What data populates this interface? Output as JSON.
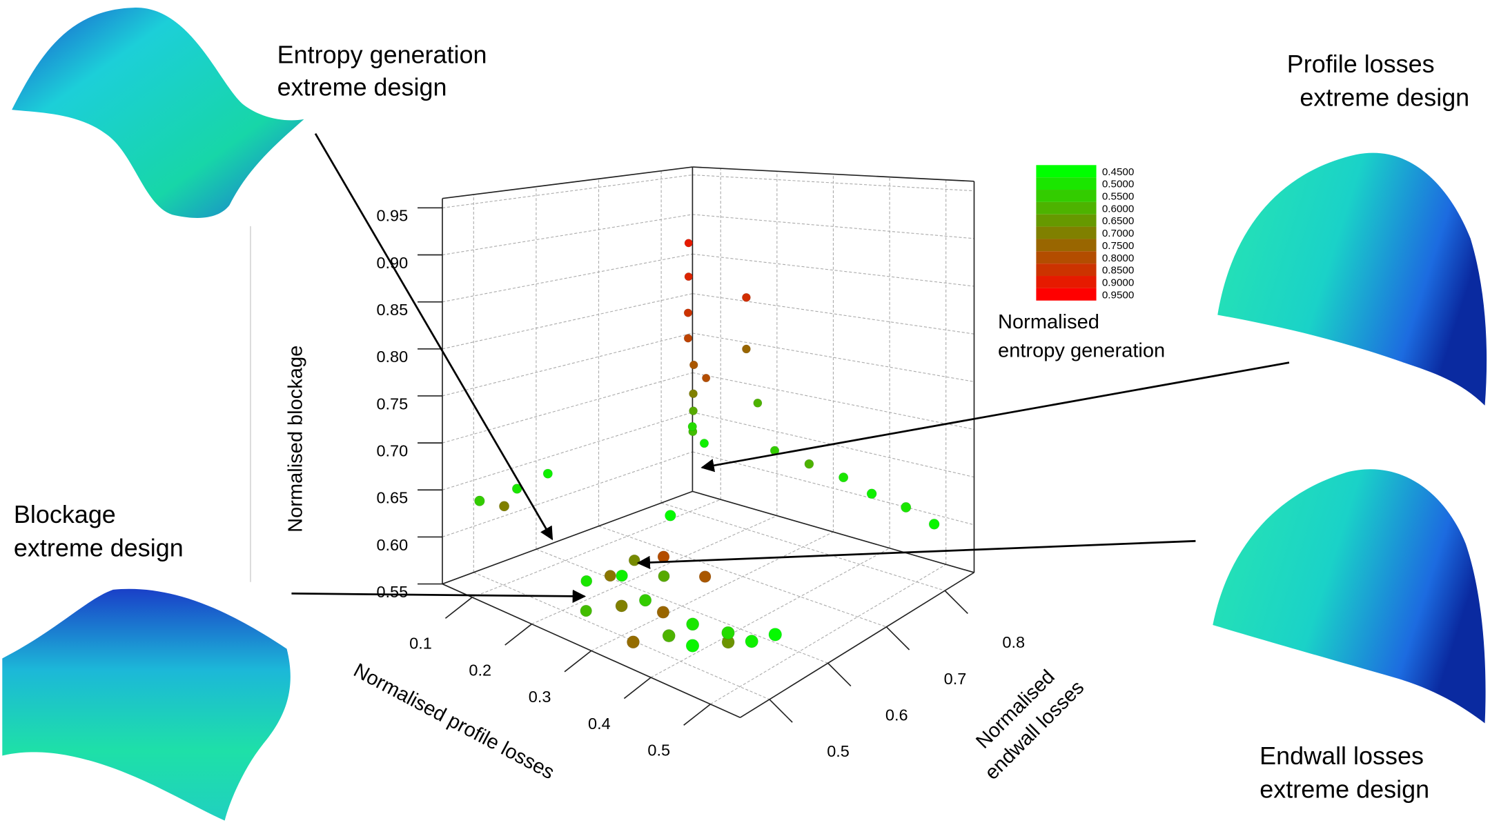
{
  "chart_data": {
    "type": "scatter3d",
    "annotations": [
      {
        "lines": [
          "Entropy generation",
          "extreme design"
        ]
      },
      {
        "lines": [
          "Profile losses",
          "extreme design"
        ]
      },
      {
        "lines": [
          "Blockage",
          "extreme design"
        ]
      },
      {
        "lines": [
          "Endwall losses",
          "extreme design"
        ]
      }
    ],
    "xlabel": "Normalised profile losses",
    "ylabel": [
      "Normalised",
      "endwall losses"
    ],
    "zlabel": "Normalised blockage",
    "colorbar_label": [
      "Normalised",
      "entropy generation"
    ],
    "xlim": [
      0.05,
      0.55
    ],
    "xticks": [
      0.1,
      0.2,
      0.3,
      0.4,
      0.5
    ],
    "ylim": [
      0.45,
      0.85
    ],
    "yticks": [
      0.5,
      0.6,
      0.7,
      0.8
    ],
    "zlim": [
      0.55,
      0.96
    ],
    "zticks": [
      0.95,
      {
        "value": 0.9,
        "label": "0.90"
      },
      0.85,
      {
        "value": 0.8,
        "label": "0.80"
      },
      0.75,
      {
        "value": 0.7,
        "label": "0.70"
      },
      0.65,
      {
        "value": 0.6,
        "label": "0.60"
      },
      0.55
    ],
    "clim": [
      0.425,
      0.975
    ],
    "cticks": [
      {
        "value": 0.45,
        "label": "0.4500"
      },
      {
        "value": 0.5,
        "label": "0.5000"
      },
      {
        "value": 0.55,
        "label": "0.5500"
      },
      {
        "value": 0.6,
        "label": "0.6000"
      },
      {
        "value": 0.65,
        "label": "0.6500"
      },
      {
        "value": 0.7,
        "label": "0.7000"
      },
      {
        "value": 0.75,
        "label": "0.7500"
      },
      {
        "value": 0.8,
        "label": "0.8000"
      },
      {
        "value": 0.85,
        "label": "0.8500"
      },
      {
        "value": 0.9,
        "label": "0.9000"
      },
      {
        "value": 0.95,
        "label": "0.9500"
      }
    ],
    "colors": [
      "#00ff00",
      "#808000",
      "#ff0000"
    ],
    "grid": true,
    "x": [
      0.22,
      0.25,
      0.28,
      0.3,
      0.33,
      0.35,
      0.38,
      0.4,
      0.42,
      0.45,
      0.47,
      0.5,
      0.26,
      0.3,
      0.36,
      0.32,
      0.24,
      0.43,
      0.28,
      0.34,
      0.12,
      0.12,
      0.13,
      0.13,
      0.14,
      0.15,
      0.15,
      0.16,
      0.14,
      0.17,
      0.18,
      0.2,
      0.2,
      0.22,
      0.25,
      0.3,
      0.35,
      0.4,
      0.45,
      0.5,
      0.06,
      0.07,
      0.06,
      0.07
    ],
    "y": [
      0.52,
      0.53,
      0.52,
      0.5,
      0.51,
      0.52,
      0.5,
      0.52,
      0.5,
      0.53,
      0.55,
      0.56,
      0.56,
      0.57,
      0.58,
      0.55,
      0.5,
      0.55,
      0.6,
      0.48,
      0.78,
      0.78,
      0.77,
      0.77,
      0.77,
      0.76,
      0.76,
      0.75,
      0.79,
      0.74,
      0.75,
      0.8,
      0.8,
      0.8,
      0.8,
      0.81,
      0.82,
      0.82,
      0.83,
      0.83,
      0.5,
      0.53,
      0.56,
      0.6
    ],
    "z": [
      0.58,
      0.59,
      0.6,
      0.58,
      0.59,
      0.58,
      0.57,
      0.58,
      0.57,
      0.58,
      0.57,
      0.58,
      0.6,
      0.59,
      0.6,
      0.62,
      0.56,
      0.56,
      0.64,
      0.56,
      0.88,
      0.84,
      0.8,
      0.77,
      0.74,
      0.71,
      0.69,
      0.67,
      0.72,
      0.68,
      0.66,
      0.82,
      0.76,
      0.7,
      0.65,
      0.64,
      0.63,
      0.62,
      0.61,
      0.6,
      0.63,
      0.62,
      0.63,
      0.64
    ],
    "c": [
      0.5,
      0.72,
      0.48,
      0.7,
      0.55,
      0.75,
      0.6,
      0.5,
      0.47,
      0.52,
      0.48,
      0.46,
      0.68,
      0.62,
      0.78,
      0.8,
      0.58,
      0.66,
      0.46,
      0.74,
      0.9,
      0.88,
      0.85,
      0.82,
      0.78,
      0.7,
      0.62,
      0.58,
      0.8,
      0.52,
      0.48,
      0.86,
      0.75,
      0.6,
      0.55,
      0.6,
      0.5,
      0.48,
      0.5,
      0.47,
      0.55,
      0.7,
      0.5,
      0.48
    ]
  }
}
